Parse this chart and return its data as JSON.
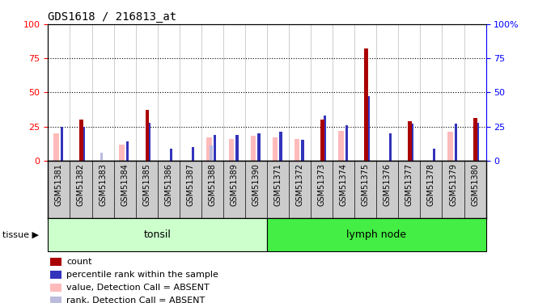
{
  "title": "GDS1618 / 216813_at",
  "samples": [
    "GSM51381",
    "GSM51382",
    "GSM51383",
    "GSM51384",
    "GSM51385",
    "GSM51386",
    "GSM51387",
    "GSM51388",
    "GSM51389",
    "GSM51390",
    "GSM51371",
    "GSM51372",
    "GSM51373",
    "GSM51374",
    "GSM51375",
    "GSM51376",
    "GSM51377",
    "GSM51378",
    "GSM51379",
    "GSM51380"
  ],
  "groups": [
    "tonsil",
    "tonsil",
    "tonsil",
    "tonsil",
    "tonsil",
    "tonsil",
    "tonsil",
    "tonsil",
    "tonsil",
    "tonsil",
    "lymph node",
    "lymph node",
    "lymph node",
    "lymph node",
    "lymph node",
    "lymph node",
    "lymph node",
    "lymph node",
    "lymph node",
    "lymph node"
  ],
  "count_values": [
    0,
    30,
    0,
    0,
    37,
    0,
    0,
    0,
    0,
    0,
    0,
    0,
    30,
    0,
    82,
    0,
    29,
    0,
    0,
    31
  ],
  "rank_values": [
    25,
    25,
    0,
    14,
    28,
    9,
    10,
    19,
    19,
    20,
    21,
    15,
    33,
    26,
    47,
    20,
    27,
    9,
    27,
    28
  ],
  "absent_value_values": [
    20,
    0,
    0,
    12,
    0,
    0,
    0,
    17,
    16,
    18,
    17,
    16,
    0,
    22,
    0,
    0,
    0,
    0,
    21,
    0
  ],
  "absent_rank_values": [
    0,
    0,
    6,
    0,
    0,
    0,
    0,
    11,
    0,
    0,
    0,
    0,
    0,
    0,
    0,
    0,
    0,
    0,
    0,
    0
  ],
  "count_color": "#aa0000",
  "rank_color": "#3333bb",
  "absent_value_color": "#ffbbbb",
  "absent_rank_color": "#bbbbdd",
  "tonsil_color": "#ccffcc",
  "lymph_color": "#44ee44",
  "xtick_bg_color": "#cccccc",
  "ylim": [
    0,
    100
  ],
  "tonsil_count": 10,
  "group_label": "tissue",
  "tonsil_label": "tonsil",
  "lymph_label": "lymph node",
  "legend_items": [
    "count",
    "percentile rank within the sample",
    "value, Detection Call = ABSENT",
    "rank, Detection Call = ABSENT"
  ],
  "legend_colors": [
    "#aa0000",
    "#3333bb",
    "#ffbbbb",
    "#bbbbdd"
  ],
  "grid_ticks": [
    25,
    50,
    75
  ]
}
